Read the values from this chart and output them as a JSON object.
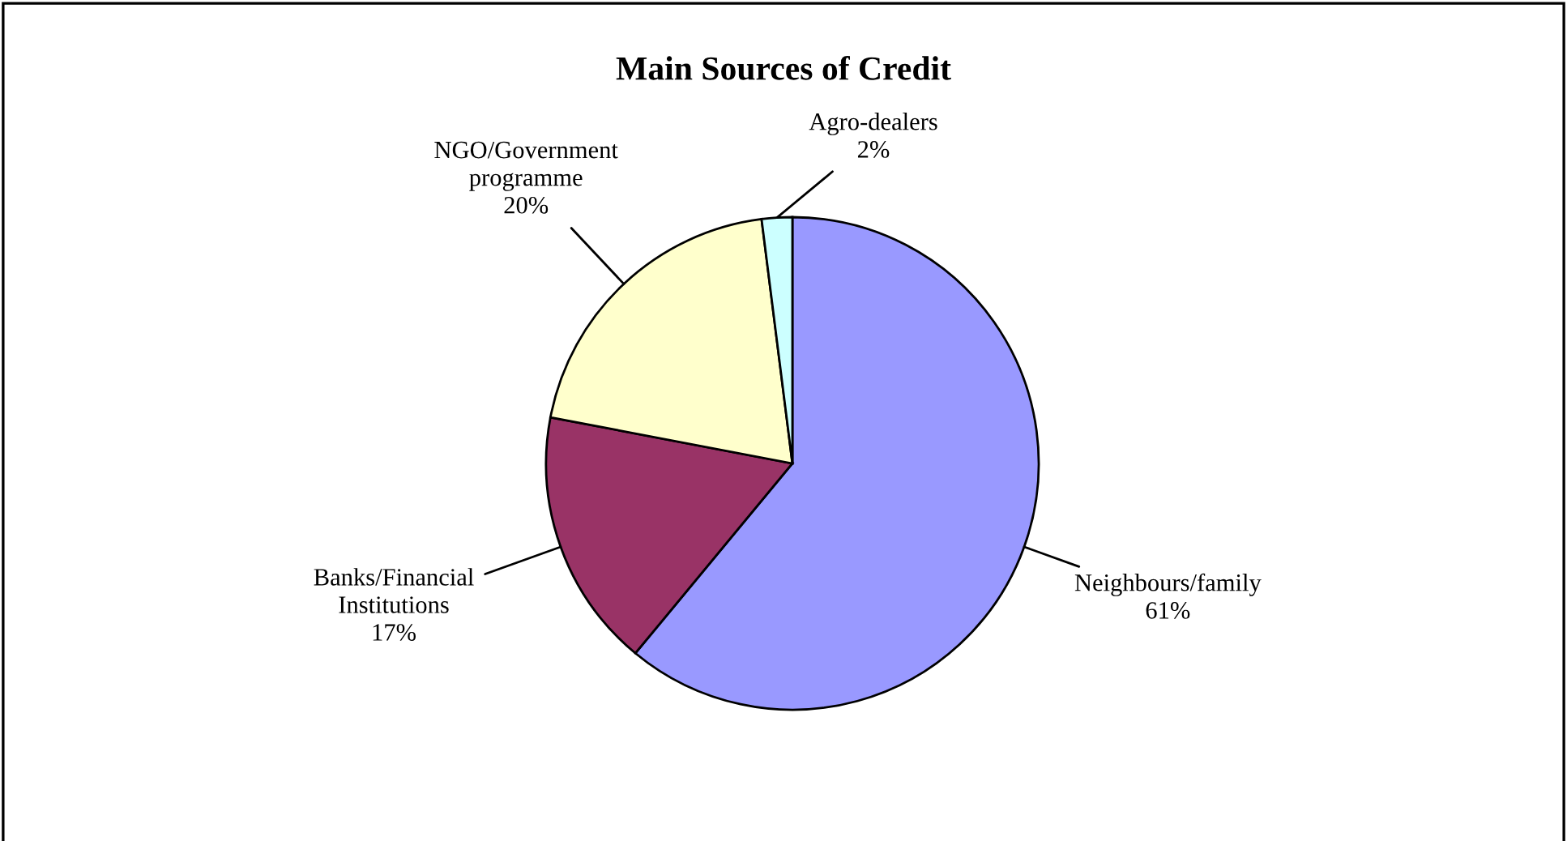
{
  "chart_data": {
    "type": "pie",
    "title": "Main Sources of Credit",
    "categories": [
      "Neighbours/family",
      "Banks/Financial\nInstitutions",
      "NGO/Government\nprogramme",
      "Agro-dealers"
    ],
    "values": [
      61,
      17,
      20,
      2
    ],
    "value_labels": [
      "61%",
      "17%",
      "20%",
      "2%"
    ],
    "colors": [
      "#9999ff",
      "#993366",
      "#ffffcc",
      "#ccffff"
    ],
    "legend": false
  }
}
